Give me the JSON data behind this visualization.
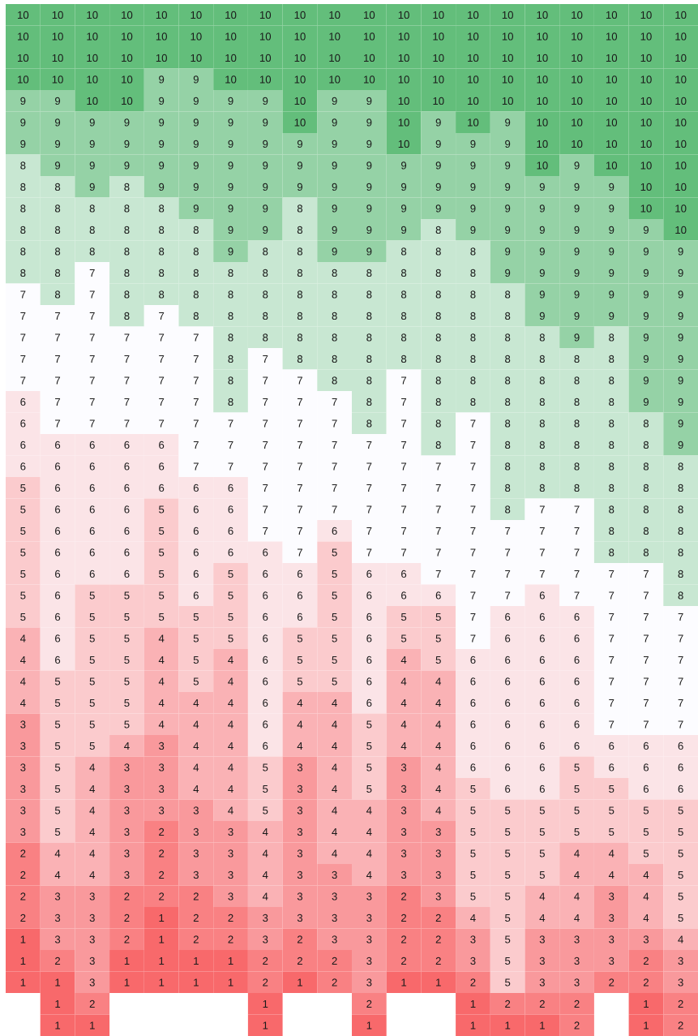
{
  "chart_data": {
    "type": "heatmap",
    "categories": [
      null,
      null,
      null,
      null,
      null,
      null,
      null,
      null,
      null,
      null,
      null,
      null,
      null,
      null,
      null,
      null,
      null,
      null,
      null,
      null
    ],
    "y_categories": [
      null,
      null,
      null,
      null,
      null,
      null,
      null,
      null,
      null,
      null,
      null,
      null,
      null,
      null,
      null,
      null,
      null,
      null,
      null,
      null,
      null,
      null,
      null,
      null,
      null,
      null,
      null,
      null,
      null,
      null,
      null,
      null,
      null,
      null,
      null,
      null,
      null,
      null,
      null,
      null,
      null,
      null,
      null,
      null,
      null,
      null,
      null,
      null
    ],
    "data_labels": true,
    "cells": [
      [
        10,
        10,
        10,
        10,
        10,
        10,
        10,
        10,
        10,
        10,
        10,
        10,
        10,
        10,
        10,
        10,
        10,
        10,
        10,
        10
      ],
      [
        10,
        10,
        10,
        10,
        10,
        10,
        10,
        10,
        10,
        10,
        10,
        10,
        10,
        10,
        10,
        10,
        10,
        10,
        10,
        10
      ],
      [
        10,
        10,
        10,
        10,
        10,
        10,
        10,
        10,
        10,
        10,
        10,
        10,
        10,
        10,
        10,
        10,
        10,
        10,
        10,
        10
      ],
      [
        10,
        10,
        10,
        10,
        9,
        9,
        10,
        10,
        10,
        10,
        10,
        10,
        10,
        10,
        10,
        10,
        10,
        10,
        10,
        10
      ],
      [
        9,
        9,
        10,
        10,
        9,
        9,
        9,
        9,
        10,
        9,
        9,
        10,
        10,
        10,
        10,
        10,
        10,
        10,
        10,
        10
      ],
      [
        9,
        9,
        9,
        9,
        9,
        9,
        9,
        9,
        10,
        9,
        9,
        10,
        9,
        10,
        9,
        10,
        10,
        10,
        10,
        10
      ],
      [
        9,
        9,
        9,
        9,
        9,
        9,
        9,
        9,
        9,
        9,
        9,
        10,
        9,
        9,
        9,
        10,
        10,
        10,
        10,
        10
      ],
      [
        8,
        9,
        9,
        9,
        9,
        9,
        9,
        9,
        9,
        9,
        9,
        9,
        9,
        9,
        9,
        10,
        9,
        10,
        10,
        10
      ],
      [
        8,
        8,
        9,
        8,
        9,
        9,
        9,
        9,
        9,
        9,
        9,
        9,
        9,
        9,
        9,
        9,
        9,
        9,
        10,
        10
      ],
      [
        8,
        8,
        8,
        8,
        8,
        9,
        9,
        9,
        8,
        9,
        9,
        9,
        9,
        9,
        9,
        9,
        9,
        9,
        10,
        10
      ],
      [
        8,
        8,
        8,
        8,
        8,
        8,
        9,
        9,
        8,
        9,
        9,
        9,
        8,
        9,
        9,
        9,
        9,
        9,
        9,
        10
      ],
      [
        8,
        8,
        8,
        8,
        8,
        8,
        9,
        8,
        8,
        9,
        9,
        8,
        8,
        8,
        9,
        9,
        9,
        9,
        9,
        9
      ],
      [
        8,
        8,
        7,
        8,
        8,
        8,
        8,
        8,
        8,
        8,
        8,
        8,
        8,
        8,
        9,
        9,
        9,
        9,
        9,
        9
      ],
      [
        7,
        8,
        7,
        8,
        8,
        8,
        8,
        8,
        8,
        8,
        8,
        8,
        8,
        8,
        8,
        9,
        9,
        9,
        9,
        9
      ],
      [
        7,
        7,
        7,
        8,
        7,
        8,
        8,
        8,
        8,
        8,
        8,
        8,
        8,
        8,
        8,
        9,
        9,
        9,
        9,
        9
      ],
      [
        7,
        7,
        7,
        7,
        7,
        7,
        8,
        8,
        8,
        8,
        8,
        8,
        8,
        8,
        8,
        8,
        9,
        8,
        9,
        9
      ],
      [
        7,
        7,
        7,
        7,
        7,
        7,
        8,
        7,
        8,
        8,
        8,
        8,
        8,
        8,
        8,
        8,
        8,
        8,
        9,
        9
      ],
      [
        7,
        7,
        7,
        7,
        7,
        7,
        8,
        7,
        7,
        8,
        8,
        7,
        8,
        8,
        8,
        8,
        8,
        8,
        9,
        9
      ],
      [
        6,
        7,
        7,
        7,
        7,
        7,
        8,
        7,
        7,
        7,
        8,
        7,
        8,
        8,
        8,
        8,
        8,
        8,
        9,
        9
      ],
      [
        6,
        7,
        7,
        7,
        7,
        7,
        7,
        7,
        7,
        7,
        8,
        7,
        8,
        7,
        8,
        8,
        8,
        8,
        8,
        9
      ],
      [
        6,
        6,
        6,
        6,
        6,
        7,
        7,
        7,
        7,
        7,
        7,
        7,
        8,
        7,
        8,
        8,
        8,
        8,
        8,
        9
      ],
      [
        6,
        6,
        6,
        6,
        6,
        7,
        7,
        7,
        7,
        7,
        7,
        7,
        7,
        7,
        8,
        8,
        8,
        8,
        8,
        8
      ],
      [
        5,
        6,
        6,
        6,
        6,
        6,
        6,
        7,
        7,
        7,
        7,
        7,
        7,
        7,
        8,
        8,
        8,
        8,
        8,
        8
      ],
      [
        5,
        6,
        6,
        6,
        5,
        6,
        6,
        7,
        7,
        7,
        7,
        7,
        7,
        7,
        8,
        7,
        7,
        8,
        8,
        8
      ],
      [
        5,
        6,
        6,
        6,
        5,
        6,
        6,
        7,
        7,
        6,
        7,
        7,
        7,
        7,
        7,
        7,
        7,
        8,
        8,
        8
      ],
      [
        5,
        6,
        6,
        6,
        5,
        6,
        6,
        6,
        7,
        5,
        7,
        7,
        7,
        7,
        7,
        7,
        7,
        8,
        8,
        8
      ],
      [
        5,
        6,
        6,
        6,
        5,
        6,
        5,
        6,
        6,
        5,
        6,
        6,
        7,
        7,
        7,
        7,
        7,
        7,
        7,
        8
      ],
      [
        5,
        6,
        5,
        5,
        5,
        6,
        5,
        6,
        6,
        5,
        6,
        6,
        6,
        7,
        7,
        6,
        7,
        7,
        7,
        8
      ],
      [
        5,
        6,
        5,
        5,
        5,
        5,
        5,
        6,
        6,
        5,
        6,
        5,
        5,
        7,
        6,
        6,
        6,
        7,
        7,
        7
      ],
      [
        4,
        6,
        5,
        5,
        4,
        5,
        5,
        6,
        5,
        5,
        6,
        5,
        5,
        7,
        6,
        6,
        6,
        7,
        7,
        7
      ],
      [
        4,
        6,
        5,
        5,
        4,
        5,
        4,
        6,
        5,
        5,
        6,
        4,
        5,
        6,
        6,
        6,
        6,
        7,
        7,
        7
      ],
      [
        4,
        5,
        5,
        5,
        4,
        5,
        4,
        6,
        5,
        5,
        6,
        4,
        4,
        6,
        6,
        6,
        6,
        7,
        7,
        7
      ],
      [
        4,
        5,
        5,
        5,
        4,
        4,
        4,
        6,
        4,
        4,
        6,
        4,
        4,
        6,
        6,
        6,
        6,
        7,
        7,
        7
      ],
      [
        3,
        5,
        5,
        5,
        4,
        4,
        4,
        6,
        4,
        4,
        5,
        4,
        4,
        6,
        6,
        6,
        6,
        7,
        7,
        7
      ],
      [
        3,
        5,
        5,
        4,
        3,
        4,
        4,
        6,
        4,
        4,
        5,
        4,
        4,
        6,
        6,
        6,
        6,
        6,
        6,
        6
      ],
      [
        3,
        5,
        4,
        3,
        3,
        4,
        4,
        5,
        3,
        4,
        5,
        3,
        4,
        6,
        6,
        6,
        5,
        6,
        6,
        6
      ],
      [
        3,
        5,
        4,
        3,
        3,
        4,
        4,
        5,
        3,
        4,
        5,
        3,
        4,
        5,
        6,
        6,
        5,
        5,
        6,
        6
      ],
      [
        3,
        5,
        4,
        3,
        3,
        3,
        4,
        5,
        3,
        4,
        4,
        3,
        4,
        5,
        5,
        5,
        5,
        5,
        5,
        5
      ],
      [
        3,
        5,
        4,
        3,
        2,
        3,
        3,
        4,
        3,
        4,
        4,
        3,
        3,
        5,
        5,
        5,
        5,
        5,
        5,
        5
      ],
      [
        2,
        4,
        4,
        3,
        2,
        3,
        3,
        4,
        3,
        4,
        4,
        3,
        3,
        5,
        5,
        5,
        4,
        4,
        5,
        5
      ],
      [
        2,
        4,
        4,
        3,
        2,
        3,
        3,
        4,
        3,
        3,
        4,
        3,
        3,
        5,
        5,
        5,
        4,
        4,
        4,
        5
      ],
      [
        2,
        3,
        3,
        2,
        2,
        2,
        3,
        4,
        3,
        3,
        3,
        2,
        3,
        5,
        5,
        4,
        4,
        3,
        4,
        5
      ],
      [
        2,
        3,
        3,
        2,
        1,
        2,
        2,
        3,
        3,
        3,
        3,
        2,
        2,
        4,
        5,
        4,
        4,
        3,
        4,
        5
      ],
      [
        1,
        3,
        3,
        2,
        1,
        2,
        2,
        3,
        2,
        3,
        3,
        2,
        2,
        3,
        5,
        3,
        3,
        3,
        3,
        4
      ],
      [
        1,
        2,
        3,
        1,
        1,
        1,
        1,
        2,
        2,
        2,
        3,
        2,
        2,
        3,
        5,
        3,
        3,
        3,
        2,
        3
      ],
      [
        1,
        1,
        3,
        1,
        1,
        1,
        1,
        2,
        1,
        2,
        3,
        1,
        1,
        2,
        5,
        3,
        3,
        2,
        2,
        3
      ],
      [
        null,
        1,
        2,
        null,
        null,
        null,
        null,
        1,
        null,
        null,
        2,
        null,
        null,
        1,
        2,
        2,
        2,
        null,
        1,
        2
      ],
      [
        null,
        1,
        1,
        null,
        null,
        null,
        null,
        1,
        null,
        null,
        1,
        null,
        null,
        1,
        1,
        1,
        2,
        null,
        1,
        2
      ]
    ]
  }
}
